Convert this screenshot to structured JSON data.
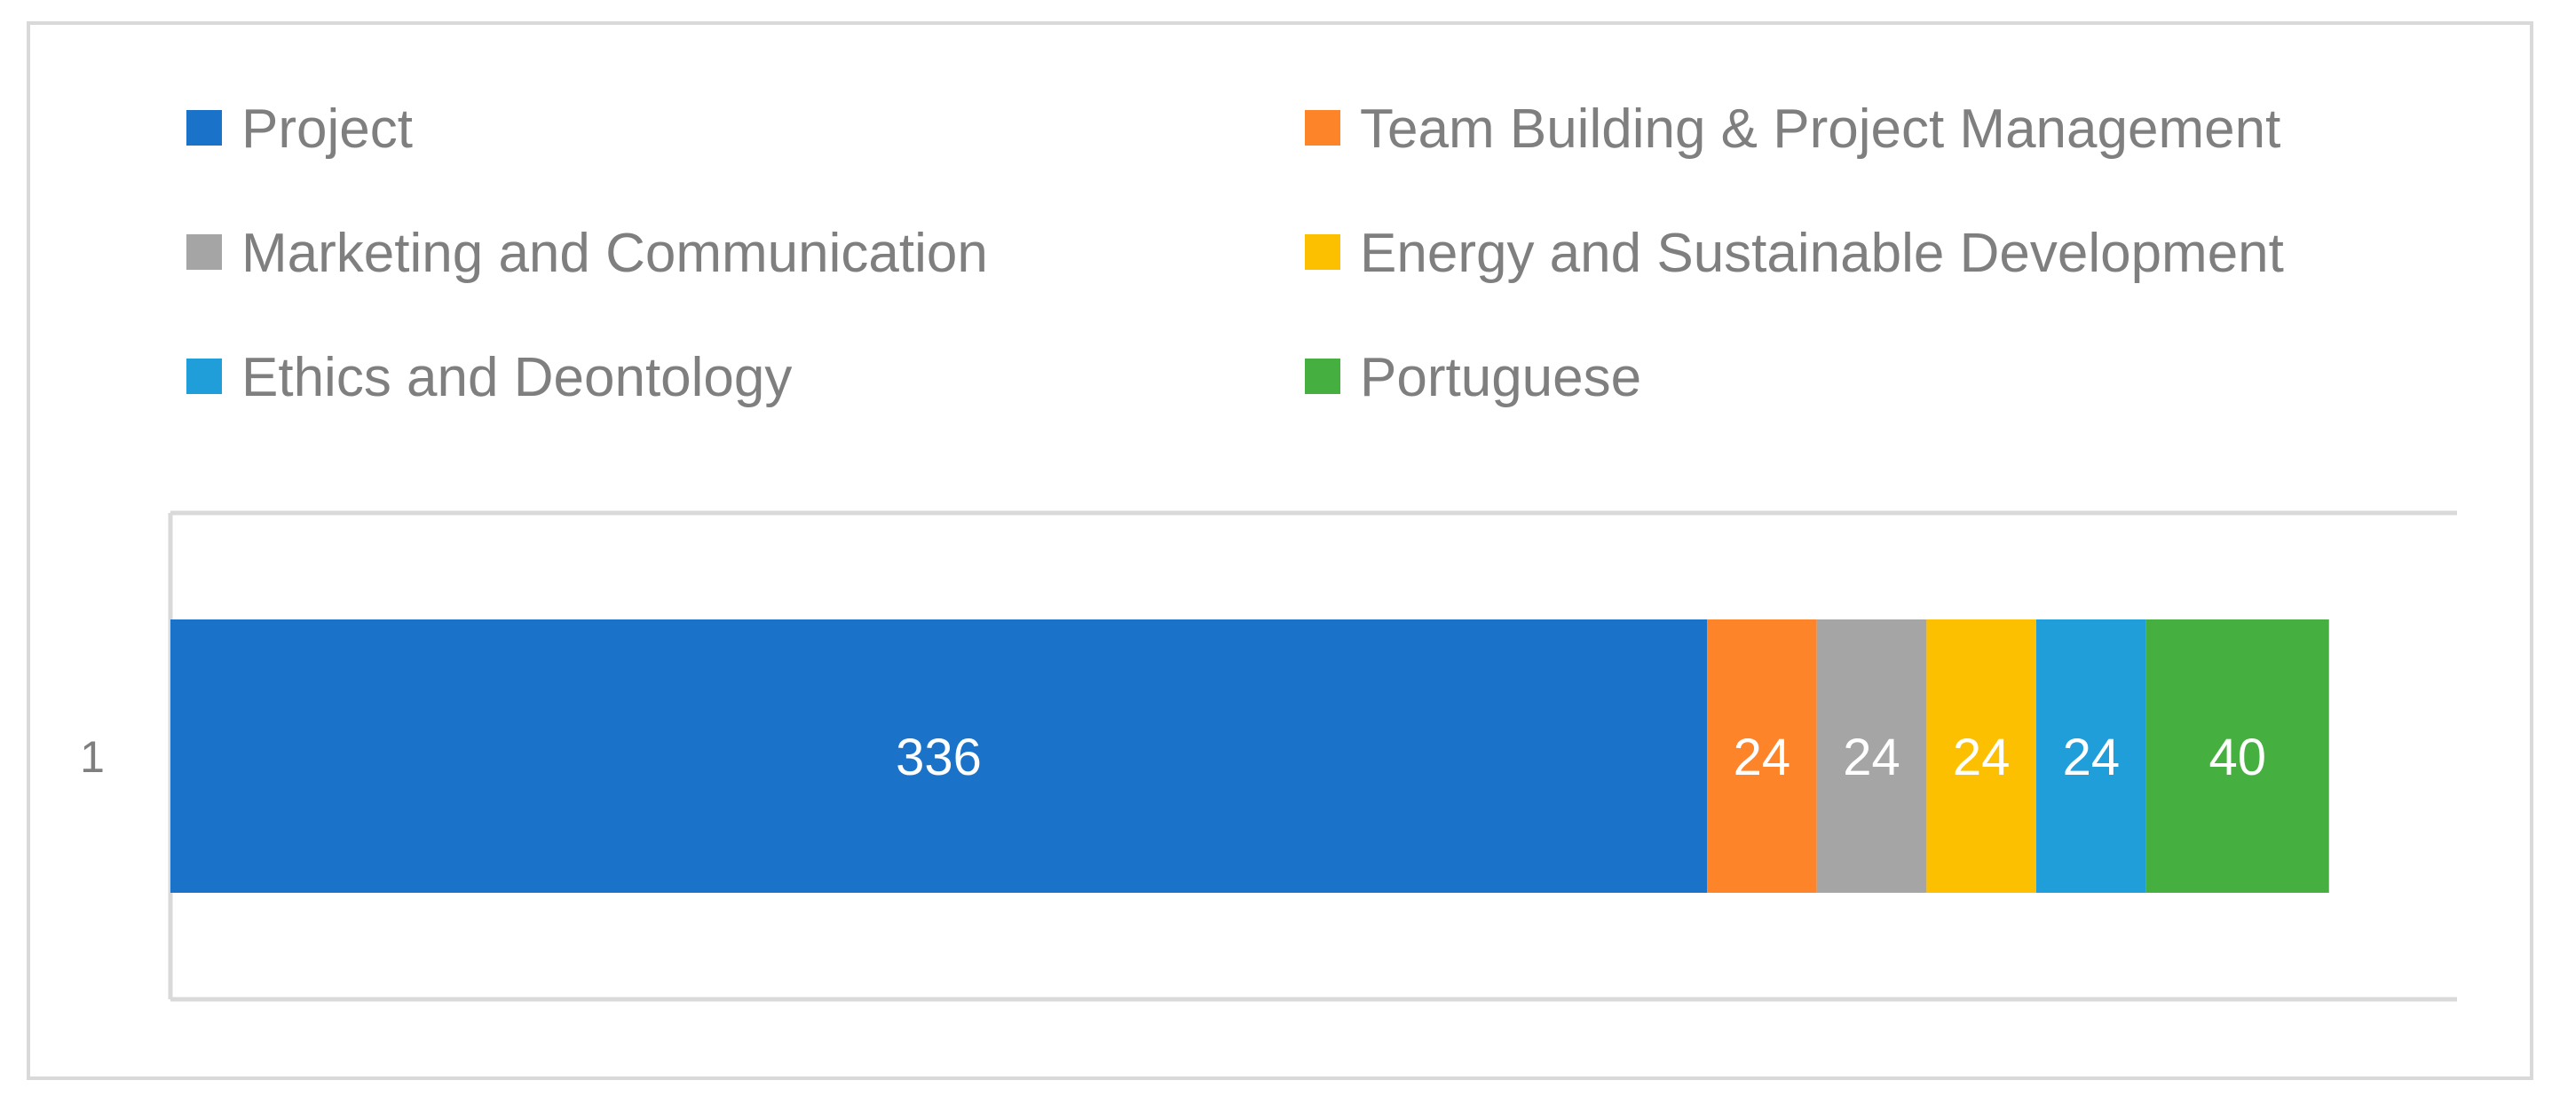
{
  "chart_data": {
    "type": "bar",
    "orientation": "horizontal",
    "stacked": true,
    "categories": [
      "1"
    ],
    "series": [
      {
        "name": "Project",
        "values": [
          336
        ],
        "color": "#1a73c8"
      },
      {
        "name": "Team Building & Project Management",
        "values": [
          24
        ],
        "color": "#fd8428"
      },
      {
        "name": "Marketing and Communication",
        "values": [
          24
        ],
        "color": "#a5a5a5"
      },
      {
        "name": "Energy and Sustainable Development",
        "values": [
          24
        ],
        "color": "#fdc000"
      },
      {
        "name": "Ethics and Deontology",
        "values": [
          24
        ],
        "color": "#1f9ed9"
      },
      {
        "name": "Portuguese",
        "values": [
          40
        ],
        "color": "#45b03f"
      }
    ],
    "xlim": [
      0,
      500
    ],
    "legend_position": "top",
    "grid": false,
    "data_labels": true
  }
}
